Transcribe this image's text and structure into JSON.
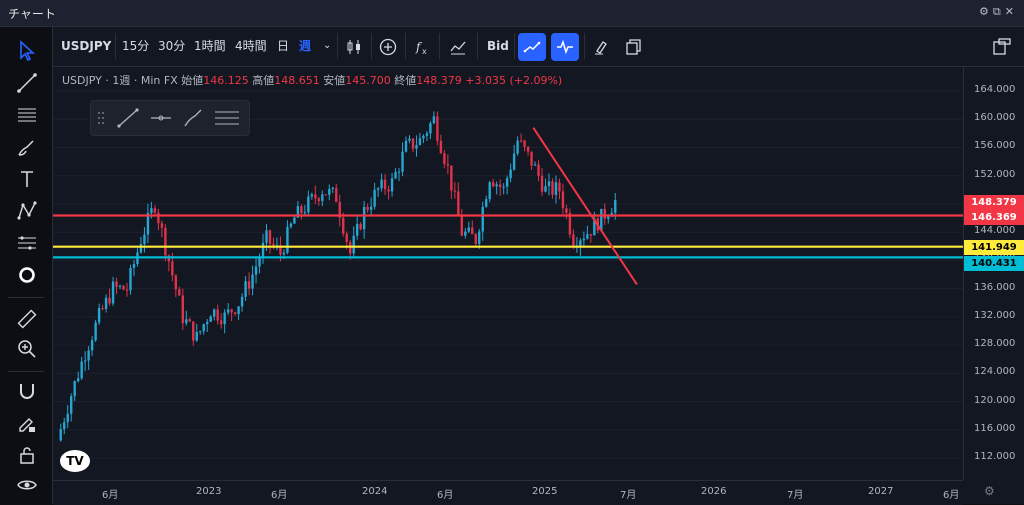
{
  "window": {
    "title": "チャート"
  },
  "toolbar": {
    "symbol": "USDJPY",
    "intervals": [
      "15分",
      "30分",
      "1時間",
      "4時間",
      "日",
      "週"
    ],
    "price_type": "Bid"
  },
  "legend": {
    "symbol": "USDJPY",
    "interval": "1週",
    "source": "Min FX",
    "open_label": "始値",
    "open": "146.125",
    "high_label": "高値",
    "high": "148.651",
    "low_label": "安値",
    "low": "145.700",
    "close_label": "終値",
    "close": "148.379",
    "change": "+3.035 (+2.09%)"
  },
  "price_axis": {
    "ticks": [
      "164.000",
      "160.000",
      "156.000",
      "152.000",
      "148.000",
      "144.000",
      "140.000",
      "136.000",
      "132.000",
      "128.000",
      "124.000",
      "120.000",
      "116.000",
      "112.000"
    ],
    "labels": [
      {
        "value": "148.379",
        "color": "#f23645"
      },
      {
        "value": "146.369",
        "color": "#f23645"
      },
      {
        "value": "141.949",
        "color": "#ffeb3b"
      },
      {
        "value": "140.431",
        "color": "#00bcd4"
      }
    ]
  },
  "time_axis": {
    "ticks": [
      "6月",
      "2023",
      "6月",
      "2024",
      "6月",
      "2025",
      "7月",
      "2026",
      "7月",
      "2027",
      "6月"
    ]
  },
  "logo_text": "TV",
  "chart_data": {
    "type": "candlestick",
    "symbol": "USDJPY",
    "interval": "1週",
    "ylim": [
      110,
      166
    ],
    "horizontal_lines": [
      {
        "value": 146.369,
        "color": "#f23645"
      },
      {
        "value": 141.949,
        "color": "#ffeb3b"
      },
      {
        "value": 140.431,
        "color": "#00bcd4"
      }
    ],
    "trendline": {
      "from": [
        "2025-01",
        158.8
      ],
      "to": [
        "2025-08",
        136.6
      ],
      "color": "#f23645"
    },
    "series": [
      {
        "name": "USDJPY",
        "close_path": [
          [
            "2022-03",
            114.5
          ],
          [
            "2022-04",
            121
          ],
          [
            "2022-05",
            127
          ],
          [
            "2022-06",
            132
          ],
          [
            "2022-07",
            136
          ],
          [
            "2022-08",
            136
          ],
          [
            "2022-09",
            143
          ],
          [
            "2022-10",
            148
          ],
          [
            "2022-11",
            140
          ],
          [
            "2022-12",
            132
          ],
          [
            "2023-01",
            129
          ],
          [
            "2023-02",
            133
          ],
          [
            "2023-03",
            132
          ],
          [
            "2023-04",
            134
          ],
          [
            "2023-05",
            138
          ],
          [
            "2023-06",
            143
          ],
          [
            "2023-07",
            141
          ],
          [
            "2023-08",
            146
          ],
          [
            "2023-09",
            148
          ],
          [
            "2023-10",
            150
          ],
          [
            "2023-11",
            149
          ],
          [
            "2023-12",
            141
          ],
          [
            "2024-01",
            147
          ],
          [
            "2024-02",
            150
          ],
          [
            "2024-03",
            151
          ],
          [
            "2024-04",
            156
          ],
          [
            "2024-05",
            157
          ],
          [
            "2024-06",
            160
          ],
          [
            "2024-07",
            153
          ],
          [
            "2024-08",
            144
          ],
          [
            "2024-09",
            143
          ],
          [
            "2024-10",
            152
          ],
          [
            "2024-11",
            150
          ],
          [
            "2024-12",
            157
          ],
          [
            "2025-01",
            154
          ],
          [
            "2025-02",
            150
          ],
          [
            "2025-03",
            150
          ],
          [
            "2025-04",
            143
          ],
          [
            "2025-05",
            144
          ],
          [
            "2025-06",
            146
          ],
          [
            "2025-07",
            148.4
          ]
        ]
      }
    ]
  }
}
